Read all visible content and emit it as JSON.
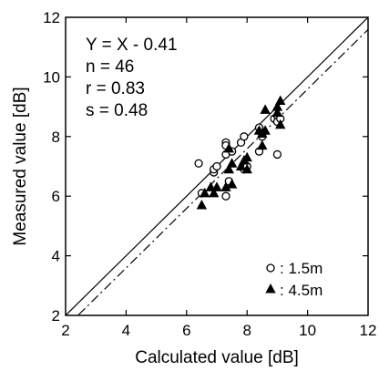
{
  "chart_data": {
    "type": "scatter",
    "xlabel": "Calculated value [dB]",
    "ylabel": "Measured value [dB]",
    "xlim": [
      2,
      12
    ],
    "ylim": [
      2,
      12
    ],
    "xticks": [
      "2",
      "4",
      "6",
      "8",
      "10",
      "12"
    ],
    "yticks": [
      "2",
      "4",
      "6",
      "8",
      "10",
      "12"
    ],
    "grid": false,
    "legend_position": "bottom-right",
    "annotations": [
      "Y = X - 0.41",
      "n = 46",
      "r = 0.83",
      "s = 0.48"
    ],
    "lines": [
      {
        "label": "Y = X",
        "style": "solid",
        "slope": 1,
        "intercept": 0
      },
      {
        "label": "Y = X - 0.41",
        "style": "dash-dot",
        "slope": 1,
        "intercept": -0.41
      }
    ],
    "series": [
      {
        "name": ": 1.5m",
        "marker": "open-circle",
        "points": [
          [
            6.4,
            7.1
          ],
          [
            6.5,
            6.1
          ],
          [
            6.9,
            6.8
          ],
          [
            6.9,
            6.9
          ],
          [
            7.0,
            7.0
          ],
          [
            7.3,
            7.8
          ],
          [
            7.3,
            7.7
          ],
          [
            7.3,
            7.4
          ],
          [
            7.4,
            6.5
          ],
          [
            7.3,
            6.0
          ],
          [
            7.8,
            7.8
          ],
          [
            7.9,
            8.0
          ],
          [
            7.9,
            6.9
          ],
          [
            8.0,
            7.0
          ],
          [
            8.4,
            7.5
          ],
          [
            8.4,
            8.3
          ],
          [
            8.5,
            8.0
          ],
          [
            8.9,
            8.6
          ],
          [
            9.0,
            8.7
          ],
          [
            9.0,
            7.4
          ],
          [
            9.0,
            8.5
          ],
          [
            9.1,
            8.6
          ],
          [
            7.5,
            7.5
          ]
        ]
      },
      {
        "name": ": 4.5m",
        "marker": "filled-triangle",
        "points": [
          [
            6.5,
            5.7
          ],
          [
            6.6,
            6.1
          ],
          [
            6.8,
            6.3
          ],
          [
            6.9,
            6.1
          ],
          [
            7.0,
            6.3
          ],
          [
            7.3,
            6.3
          ],
          [
            7.4,
            6.9
          ],
          [
            7.4,
            7.6
          ],
          [
            7.5,
            7.1
          ],
          [
            7.8,
            7.0
          ],
          [
            7.9,
            7.2
          ],
          [
            8.0,
            7.3
          ],
          [
            8.0,
            6.9
          ],
          [
            8.5,
            8.1
          ],
          [
            8.5,
            7.7
          ],
          [
            8.6,
            8.9
          ],
          [
            8.6,
            8.2
          ],
          [
            9.0,
            8.8
          ],
          [
            9.1,
            8.4
          ],
          [
            9.1,
            9.2
          ],
          [
            9.0,
            9.0
          ],
          [
            7.5,
            6.4
          ],
          [
            8.4,
            8.2
          ]
        ]
      }
    ]
  }
}
